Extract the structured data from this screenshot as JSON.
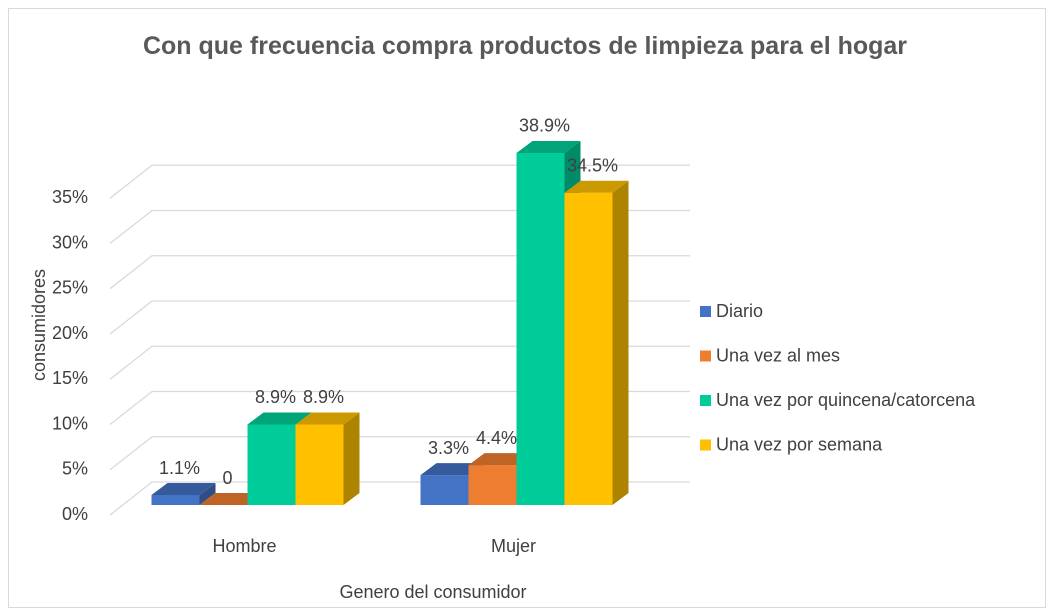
{
  "chart_data": {
    "type": "bar3d",
    "title": "Con que frecuencia compra productos de limpieza para el hogar",
    "xlabel": "Genero del consumidor",
    "ylabel": "consumidores",
    "categories": [
      "Hombre",
      "Mujer"
    ],
    "series": [
      {
        "name": "Diario",
        "color": "#4472c4",
        "values": [
          1.1,
          3.3
        ],
        "value_labels": [
          "1.1%",
          "3.3%"
        ]
      },
      {
        "name": "Una vez al mes",
        "color": "#ed7d31",
        "values": [
          0,
          4.4
        ],
        "value_labels": [
          "0",
          "4.4%"
        ]
      },
      {
        "name": "Una vez por quincena/catorcena",
        "color": "#00cc99",
        "values": [
          8.9,
          38.9
        ],
        "value_labels": [
          "8.9%",
          "38.9%"
        ]
      },
      {
        "name": "Una vez por semana",
        "color": "#ffc000",
        "values": [
          8.9,
          34.5
        ],
        "value_labels": [
          "8.9%",
          "34.5%"
        ]
      }
    ],
    "ylim": [
      0,
      40
    ],
    "yticks": [
      {
        "value": 0,
        "label": "0%"
      },
      {
        "value": 5,
        "label": "5%"
      },
      {
        "value": 10,
        "label": "10%"
      },
      {
        "value": 15,
        "label": "15%"
      },
      {
        "value": 20,
        "label": "20%"
      },
      {
        "value": 25,
        "label": "25%"
      },
      {
        "value": 30,
        "label": "30%"
      },
      {
        "value": 35,
        "label": "35%"
      }
    ],
    "grid": true,
    "legend": "right"
  }
}
